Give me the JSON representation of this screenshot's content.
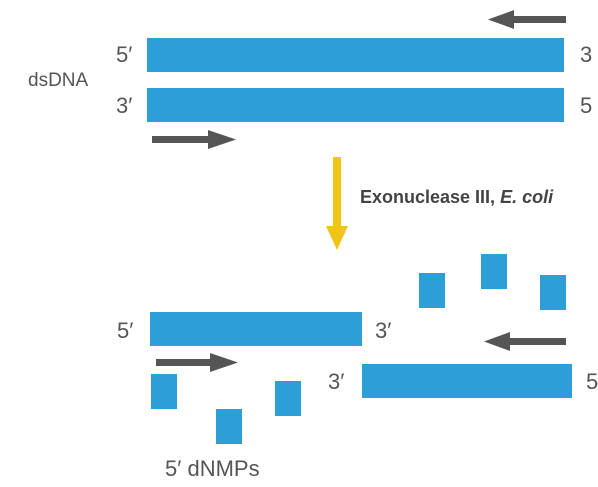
{
  "colors": {
    "strand": "#2e9fd6",
    "arrow": "#555555",
    "enzyme_arrow": "#f0c419",
    "text": "#555555"
  },
  "top": {
    "side_label": "dsDNA",
    "top_strand": {
      "left_label": "5′",
      "right_label": "3"
    },
    "bottom_strand": {
      "left_label": "3′",
      "right_label": "5"
    }
  },
  "enzyme": {
    "name": "Exonuclease III, ",
    "organism": "E. coli"
  },
  "bottom": {
    "left_fragment": {
      "left_label": "5′",
      "right_label": "3′"
    },
    "right_fragment": {
      "left_label": "3′",
      "right_label": "5"
    },
    "products_label": "5′ dNMPs"
  }
}
